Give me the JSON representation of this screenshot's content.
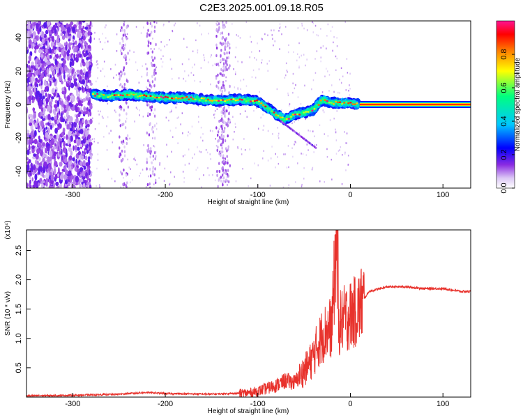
{
  "title": "C2E3.2025.001.09.18.R05",
  "colors": {
    "snr_line": "#e8322c",
    "colormap": [
      "#ffffff",
      "#8a2be2",
      "#0000ff",
      "#00c8ff",
      "#00ff7f",
      "#ffff00",
      "#ff8000",
      "#ff0000",
      "#ff1493"
    ]
  },
  "chart_data": [
    {
      "type": "heatmap",
      "xlabel": "Height of straight line (km)",
      "ylabel": "Frequency (Hz)",
      "xlim": [
        -350,
        130
      ],
      "ylim": [
        -50,
        50
      ],
      "xticks": [
        -300,
        -200,
        -100,
        0,
        100
      ],
      "yticks": [
        -40,
        -20,
        0,
        20,
        40
      ],
      "colorbar": {
        "label": "Normalized spectral amplitude",
        "range": [
          0,
          1
        ],
        "ticks": [
          0.0,
          0.2,
          0.4,
          0.6,
          0.8
        ]
      },
      "signal_track": {
        "x": [
          -278,
          -260,
          -240,
          -220,
          -200,
          -180,
          -160,
          -140,
          -120,
          -100,
          -90,
          -80,
          -70,
          -60,
          -50,
          -40,
          -30,
          -20,
          -10,
          0,
          10,
          130
        ],
        "y": [
          6,
          5,
          6,
          5,
          4,
          4,
          3,
          2,
          3,
          2,
          -2,
          -6,
          -9,
          -6,
          -5,
          -3,
          3,
          1,
          1,
          1,
          0,
          0
        ],
        "peak_amplitude": 1.0
      },
      "noise_region": {
        "x": [
          -350,
          -280
        ],
        "density": "high"
      },
      "noise_columns_x": [
        -245,
        -215,
        -140,
        -135
      ]
    },
    {
      "type": "line",
      "xlabel": "Height of straight line (km)",
      "ylabel": "SNR (10 * v/v)",
      "y_multiplier": "(x10⁴)",
      "xlim": [
        -350,
        130
      ],
      "ylim": [
        0,
        2.85
      ],
      "xticks": [
        -300,
        -200,
        -100,
        0,
        100
      ],
      "yticks": [
        0.5,
        1.0,
        1.5,
        2.0,
        2.5
      ],
      "series": [
        {
          "x": [
            -350,
            -300,
            -250,
            -220,
            -200,
            -150,
            -110,
            -100,
            -90,
            -80,
            -70,
            -60,
            -50,
            -45,
            -40,
            -35,
            -30,
            -25,
            -20,
            -15,
            -13,
            -10,
            -5,
            0,
            5,
            10,
            20,
            40,
            60,
            80,
            100,
            120,
            130
          ],
          "y": [
            0.02,
            0.03,
            0.05,
            0.08,
            0.06,
            0.05,
            0.07,
            0.1,
            0.15,
            0.2,
            0.28,
            0.25,
            0.45,
            0.55,
            0.7,
            0.9,
            1.05,
            1.15,
            1.2,
            2.75,
            1.2,
            1.3,
            1.35,
            1.4,
            1.45,
            1.55,
            1.8,
            1.88,
            1.88,
            1.85,
            1.85,
            1.8,
            1.8
          ]
        }
      ]
    }
  ]
}
